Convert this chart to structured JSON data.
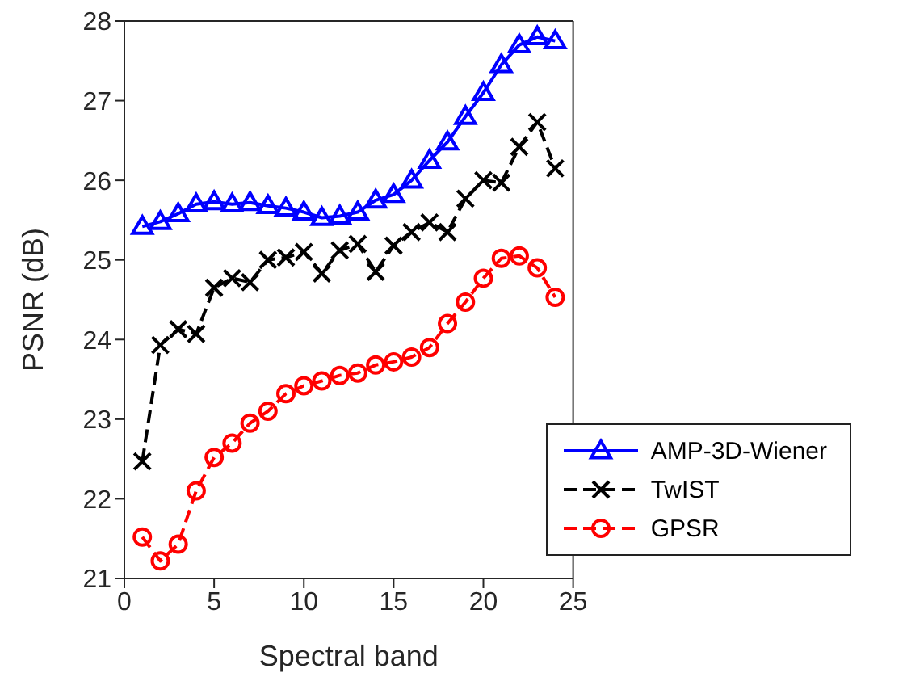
{
  "chart_data": {
    "type": "line",
    "xlabel": "Spectral band",
    "ylabel": "PSNR (dB)",
    "x": [
      1,
      2,
      3,
      4,
      5,
      6,
      7,
      8,
      9,
      10,
      11,
      12,
      13,
      14,
      15,
      16,
      17,
      18,
      19,
      20,
      21,
      22,
      23,
      24
    ],
    "xlim": [
      0,
      25
    ],
    "xticks": [
      0,
      5,
      10,
      15,
      20,
      25
    ],
    "ylim": [
      21,
      28
    ],
    "yticks": [
      21,
      22,
      23,
      24,
      25,
      26,
      27,
      28
    ],
    "grid": false,
    "legend": "bottom right",
    "series": [
      {
        "name": "AMP-3D-Wiener",
        "color": "#0000ff",
        "marker": "triangle",
        "line_style": "solid",
        "values": [
          25.42,
          25.48,
          25.58,
          25.7,
          25.73,
          25.7,
          25.72,
          25.68,
          25.65,
          25.6,
          25.53,
          25.55,
          25.6,
          25.75,
          25.82,
          26.0,
          26.25,
          26.48,
          26.8,
          27.1,
          27.45,
          27.7,
          27.8,
          27.75
        ]
      },
      {
        "name": "TwIST",
        "color": "#000000",
        "marker": "cross",
        "line_style": "dashed",
        "values": [
          22.47,
          23.93,
          24.13,
          24.07,
          24.65,
          24.77,
          24.72,
          25.0,
          25.03,
          25.1,
          24.83,
          25.12,
          25.2,
          24.85,
          25.18,
          25.35,
          25.47,
          25.35,
          25.77,
          26.0,
          25.97,
          26.42,
          26.73,
          26.15
        ]
      },
      {
        "name": "GPSR",
        "color": "#ff0000",
        "marker": "circle",
        "line_style": "dashed",
        "values": [
          21.52,
          21.22,
          21.43,
          22.1,
          22.52,
          22.7,
          22.95,
          23.1,
          23.32,
          23.42,
          23.48,
          23.55,
          23.58,
          23.68,
          23.72,
          23.78,
          23.9,
          24.2,
          24.47,
          24.77,
          25.02,
          25.05,
          24.9,
          24.53
        ]
      }
    ]
  }
}
